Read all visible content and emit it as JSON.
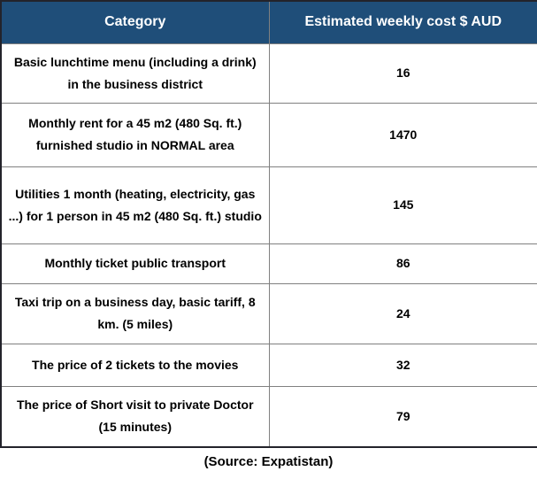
{
  "table": {
    "columns": [
      "Category",
      "Estimated weekly cost $ AUD"
    ],
    "rows": [
      {
        "category": "Basic lunchtime menu (including a drink) in the business district",
        "cost": "16"
      },
      {
        "category": "Monthly rent for a 45 m2 (480 Sq. ft.) furnished studio in NORMAL area",
        "cost": "1470"
      },
      {
        "category": "Utilities 1 month (heating, electricity, gas ...) for 1 person in 45 m2 (480 Sq. ft.) studio",
        "cost": "145"
      },
      {
        "category": "Monthly ticket public transport",
        "cost": "86"
      },
      {
        "category": "Taxi trip on a business day, basic tariff, 8 km. (5 miles)",
        "cost": "24"
      },
      {
        "category": "The price of 2 tickets to the movies",
        "cost": "32"
      },
      {
        "category": "The price of Short visit to private Doctor (15 minutes)",
        "cost": "79"
      }
    ]
  },
  "source_note": "(Source: Expatistan)",
  "colors": {
    "header_bg": "#1F4E79",
    "header_text": "#FFFFFF",
    "grid_line": "#808080",
    "outer_border": "#23232B",
    "body_text": "#000000",
    "page_bg": "#FFFFFF"
  },
  "chart_data": {
    "type": "table",
    "title": "",
    "columns": [
      "Category",
      "Estimated weekly cost $ AUD"
    ],
    "rows": [
      [
        "Basic lunchtime menu (including a drink) in the business district",
        16
      ],
      [
        "Monthly rent for a 45 m2 (480 Sq. ft.) furnished studio in NORMAL area",
        1470
      ],
      [
        "Utilities 1 month (heating, electricity, gas ...) for 1 person in 45 m2 (480 Sq. ft.) studio",
        145
      ],
      [
        "Monthly ticket public transport",
        86
      ],
      [
        "Taxi trip on a business day, basic tariff, 8 km. (5 miles)",
        24
      ],
      [
        "The price of 2 tickets to the movies",
        32
      ],
      [
        "The price of Short visit to private Doctor (15 minutes)",
        79
      ]
    ],
    "source": "(Source: Expatistan)"
  }
}
